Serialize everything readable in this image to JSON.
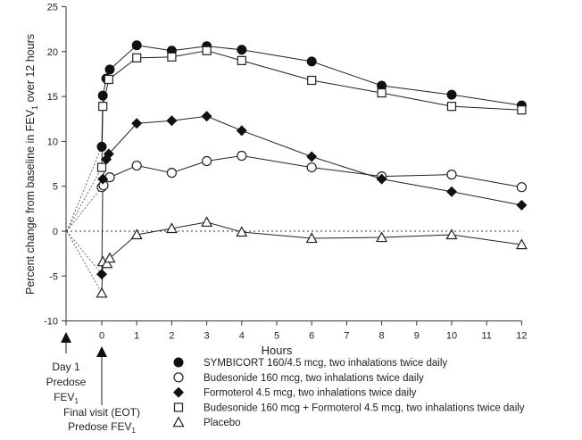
{
  "chart_data": {
    "type": "line",
    "title": "",
    "xlabel": "Hours",
    "ylabel": "Percent change from baseline in FEV1 over 12 hours",
    "ylabel_parts": {
      "before": "Percent change from baseline in FEV",
      "sub": "1",
      "after": " over 12 hours"
    },
    "xlim": [
      -1,
      12
    ],
    "ylim": [
      -10,
      25
    ],
    "x_ticks": [
      0,
      1,
      2,
      3,
      4,
      5,
      6,
      7,
      8,
      9,
      10,
      11,
      12
    ],
    "y_ticks": [
      -10,
      -5,
      0,
      5,
      10,
      15,
      20,
      25
    ],
    "grid": false,
    "reference_line": 0,
    "day1_predose_point": {
      "x": -1,
      "y": 0
    },
    "legend_position": "bottom",
    "series": [
      {
        "name": "SYMBICORT 160/4.5 mcg, two inhalations twice daily",
        "marker": "filled-circle",
        "x": [
          0,
          0.03,
          0.13,
          0.23,
          1,
          2,
          3,
          4,
          6,
          8,
          10,
          12
        ],
        "values": [
          9.4,
          15.1,
          17.0,
          18.0,
          20.7,
          20.1,
          20.6,
          20.2,
          18.9,
          16.2,
          15.2,
          14.0
        ]
      },
      {
        "name": "Budesonide 160 mcg, two inhalations twice daily",
        "marker": "open-circle",
        "x": [
          0,
          0.05,
          0.23,
          1,
          2,
          3,
          4,
          6,
          8,
          10,
          12
        ],
        "values": [
          4.9,
          5.1,
          6.0,
          7.3,
          6.5,
          7.8,
          8.4,
          7.1,
          6.1,
          6.3,
          4.9
        ]
      },
      {
        "name": "Formoterol 4.5 mcg, two inhalations twice daily",
        "marker": "filled-diamond",
        "x": [
          0,
          0.03,
          0.13,
          0.2,
          1,
          2,
          3,
          4,
          6,
          8,
          10,
          12
        ],
        "values": [
          -4.8,
          5.8,
          8.0,
          8.6,
          12.0,
          12.3,
          12.8,
          11.2,
          8.3,
          5.8,
          4.4,
          2.9
        ]
      },
      {
        "name": "Budesonide 160 mcg + Formoterol 4.5 mcg, two inhalations twice daily",
        "marker": "open-square",
        "x": [
          0,
          0.03,
          0.2,
          1,
          2,
          3,
          4,
          6,
          8,
          10,
          12
        ],
        "values": [
          7.1,
          13.9,
          16.9,
          19.3,
          19.4,
          20.1,
          19.0,
          16.8,
          15.4,
          13.9,
          13.5
        ]
      },
      {
        "name": "Placebo",
        "marker": "open-triangle",
        "x": [
          0,
          0.03,
          0.15,
          0.23,
          1,
          2,
          3,
          4,
          6,
          8,
          10,
          12
        ],
        "values": [
          -6.9,
          -3.4,
          -3.6,
          -3.0,
          -0.4,
          0.3,
          1.0,
          -0.1,
          -0.8,
          -0.7,
          -0.4,
          -1.5
        ]
      }
    ],
    "annotations": {
      "day1": [
        "Day 1",
        "Predose",
        "FEV1"
      ],
      "day1_parts": {
        "line1": "Day 1",
        "line2": "Predose",
        "line3": "FEV",
        "sub": "1"
      },
      "eot_parts": {
        "line1": "Final visit (EOT)",
        "line2": "Predose FEV",
        "sub": "1"
      }
    }
  }
}
